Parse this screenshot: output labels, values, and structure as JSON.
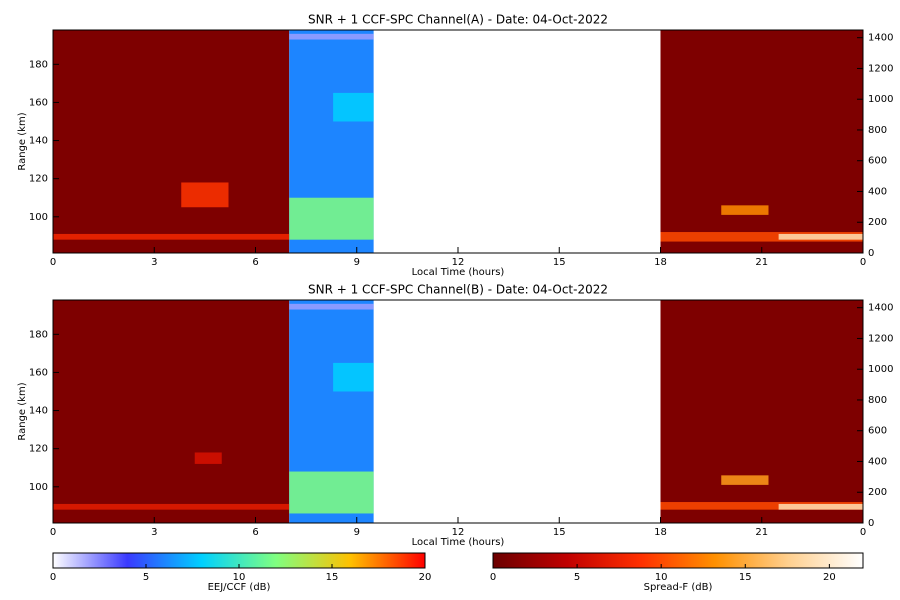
{
  "chart_data": [
    {
      "type": "heatmap",
      "title": "SNR + 1 CCF-SPC Channel(A) - Date: 04-Oct-2022",
      "xlabel": "Local Time (hours)",
      "ylabel": "Range (km)",
      "xlim": [
        0,
        24
      ],
      "xticks": [
        0,
        3,
        6,
        9,
        12,
        15,
        18,
        21,
        {
          "value": 24,
          "label": "0"
        }
      ],
      "ylim": [
        81,
        198
      ],
      "yticks": [
        100,
        120,
        140,
        160,
        180
      ],
      "y2lim": [
        0,
        1450
      ],
      "y2ticks": [
        0,
        200,
        400,
        600,
        800,
        1000,
        1200,
        1400
      ],
      "spread_f_blocks": [
        {
          "x": [
            0,
            7
          ],
          "level": 1
        },
        {
          "x": [
            18,
            24
          ],
          "level": 1
        }
      ],
      "eej_blocks": [
        {
          "x": [
            7,
            9.5
          ],
          "level": 6
        }
      ],
      "spread_f_echoes": [
        {
          "x": [
            0,
            7
          ],
          "range": [
            88,
            91
          ],
          "level": 8
        },
        {
          "x": [
            3.8,
            5.2
          ],
          "range": [
            105,
            118
          ],
          "level": 9
        },
        {
          "x": [
            18,
            24
          ],
          "range": [
            87,
            92
          ],
          "level": 10
        },
        {
          "x": [
            21.5,
            24
          ],
          "range": [
            88,
            91
          ],
          "level": 19
        },
        {
          "x": [
            19.8,
            21.2
          ],
          "range": [
            101,
            106
          ],
          "level": 13
        }
      ],
      "eej_echoes": [
        {
          "x": [
            7,
            9.5
          ],
          "range": [
            88,
            110
          ],
          "level": 12
        },
        {
          "x": [
            7,
            9.5
          ],
          "range": [
            193,
            196
          ],
          "level": 2
        },
        {
          "x": [
            8.3,
            9.5
          ],
          "range": [
            150,
            165
          ],
          "level": 8
        }
      ]
    },
    {
      "type": "heatmap",
      "title": "SNR + 1 CCF-SPC Channel(B) - Date: 04-Oct-2022",
      "xlabel": "Local Time (hours)",
      "ylabel": "Range (km)",
      "xlim": [
        0,
        24
      ],
      "xticks": [
        0,
        3,
        6,
        9,
        12,
        15,
        18,
        21,
        {
          "value": 24,
          "label": "0"
        }
      ],
      "ylim": [
        81,
        198
      ],
      "yticks": [
        100,
        120,
        140,
        160,
        180
      ],
      "y2lim": [
        0,
        1450
      ],
      "y2ticks": [
        0,
        200,
        400,
        600,
        800,
        1000,
        1200,
        1400
      ],
      "spread_f_blocks": [
        {
          "x": [
            0,
            7
          ],
          "level": 1
        },
        {
          "x": [
            18,
            24
          ],
          "level": 1
        }
      ],
      "eej_blocks": [
        {
          "x": [
            7,
            9.5
          ],
          "level": 6
        }
      ],
      "spread_f_echoes": [
        {
          "x": [
            0,
            7
          ],
          "range": [
            88,
            91
          ],
          "level": 7
        },
        {
          "x": [
            4.2,
            5.0
          ],
          "range": [
            112,
            118
          ],
          "level": 6
        },
        {
          "x": [
            18,
            24
          ],
          "range": [
            88,
            92
          ],
          "level": 10
        },
        {
          "x": [
            21.5,
            24
          ],
          "range": [
            88,
            91
          ],
          "level": 19
        },
        {
          "x": [
            19.8,
            21.2
          ],
          "range": [
            101,
            106
          ],
          "level": 14
        }
      ],
      "eej_echoes": [
        {
          "x": [
            7,
            9.5
          ],
          "range": [
            86,
            108
          ],
          "level": 12
        },
        {
          "x": [
            7,
            9.5
          ],
          "range": [
            193,
            196
          ],
          "level": 2
        },
        {
          "x": [
            8.3,
            9.5
          ],
          "range": [
            150,
            165
          ],
          "level": 8
        }
      ]
    },
    {
      "type": "colorbar",
      "label": "EEJ/CCF (dB)",
      "lim": [
        0,
        20
      ],
      "ticks": [
        0,
        5,
        10,
        15,
        20
      ],
      "colors": [
        "#ffffff",
        "#3a3aff",
        "#00d0ff",
        "#80ff80",
        "#ffc000",
        "#ff0000"
      ]
    },
    {
      "type": "colorbar",
      "label": "Spread-F (dB)",
      "lim": [
        0,
        22
      ],
      "ticks": [
        0,
        5,
        10,
        15,
        20
      ],
      "colors": [
        "#6b0000",
        "#c00000",
        "#ff3000",
        "#ff9000",
        "#ffd090",
        "#ffffff"
      ]
    }
  ]
}
